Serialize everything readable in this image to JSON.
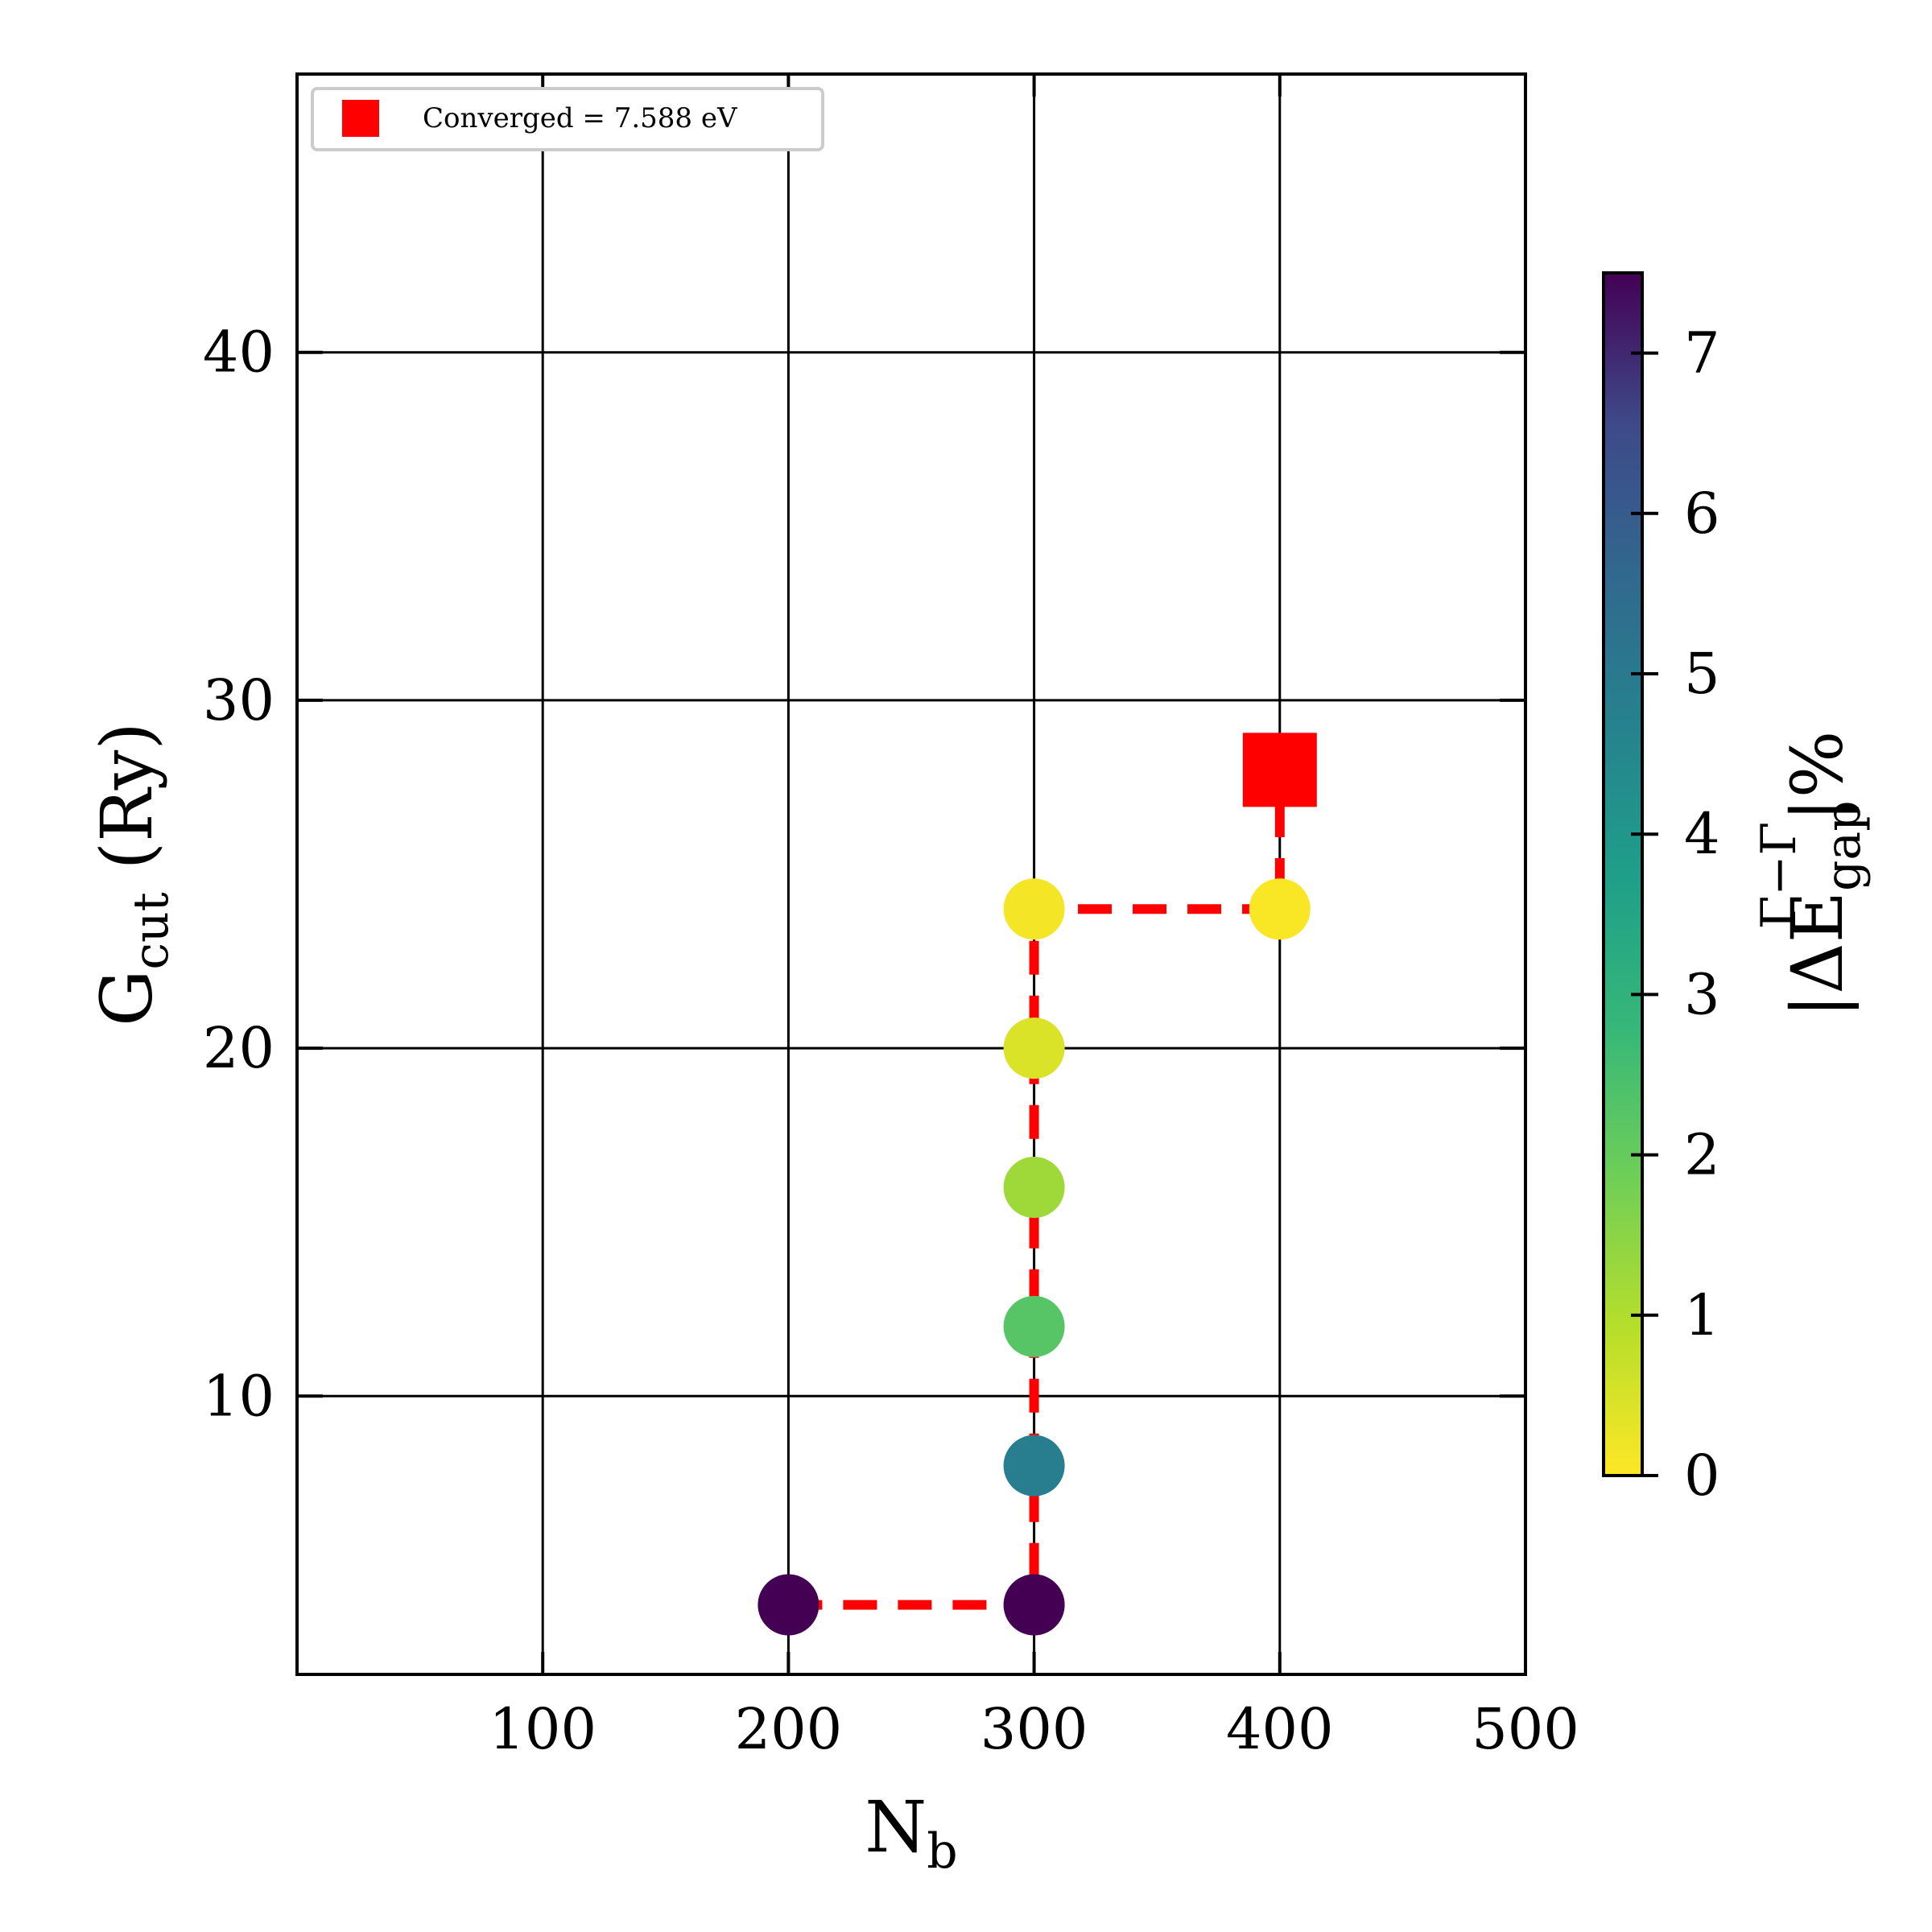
{
  "chart_data": {
    "type": "scatter",
    "title": "",
    "xlabel": {
      "main": "N",
      "sub": "b"
    },
    "ylabel": {
      "main": "G",
      "sub": "cut",
      "suffix": " (Ry)"
    },
    "colorbar_label": {
      "prefix": "|ΔE",
      "sup": "Γ−Γ",
      "sub": "gap",
      "suffix": "|%"
    },
    "xlim": [
      0,
      500
    ],
    "ylim": [
      2,
      48
    ],
    "x_ticks": [
      100,
      200,
      300,
      400,
      500
    ],
    "y_ticks": [
      10,
      20,
      30,
      40
    ],
    "grid": true,
    "colormap": "viridis_r",
    "clim": [
      0,
      7.5
    ],
    "colorbar_ticks": [
      0,
      1,
      2,
      3,
      4,
      5,
      6,
      7
    ],
    "points": [
      {
        "x": 200,
        "y": 4,
        "value": 7.5
      },
      {
        "x": 300,
        "y": 4,
        "value": 7.5
      },
      {
        "x": 300,
        "y": 8,
        "value": 4.3
      },
      {
        "x": 300,
        "y": 12,
        "value": 2.0
      },
      {
        "x": 300,
        "y": 16,
        "value": 1.1
      },
      {
        "x": 300,
        "y": 20,
        "value": 0.4
      },
      {
        "x": 300,
        "y": 24,
        "value": 0.1
      },
      {
        "x": 400,
        "y": 24,
        "value": 0.05
      }
    ],
    "path": {
      "color": "#ff0000",
      "style": "dashed",
      "x": [
        200,
        300,
        300,
        300,
        300,
        300,
        300,
        400,
        400
      ],
      "y": [
        4,
        4,
        8,
        12,
        16,
        20,
        24,
        24,
        28
      ]
    },
    "converged": {
      "x": 400,
      "y": 28,
      "marker": "square",
      "color": "#ff0000"
    },
    "legend": {
      "placement": "top-left",
      "entries": [
        {
          "label": "Converged = 7.588 eV",
          "marker": "square",
          "color": "#ff0000"
        }
      ]
    }
  }
}
